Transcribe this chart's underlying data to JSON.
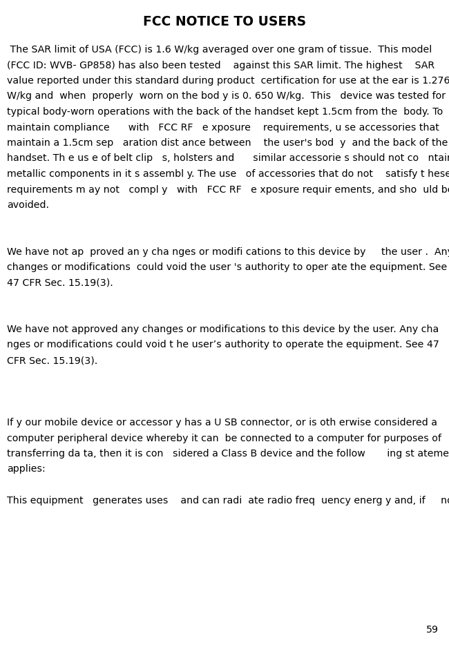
{
  "title": "FCC NOTICE TO USERS",
  "page_number": "59",
  "background_color": "#ffffff",
  "text_color": "#000000",
  "title_fontsize": 13.5,
  "body_fontsize": 10.2,
  "page_num_fontsize": 10.2,
  "lines": [
    " The SAR limit of USA (FCC) is 1.6 W/kg averaged over one gram of tissue.  This model",
    "(FCC ID: WVB- GP858) has also been tested    against this SAR limit. The highest    SAR",
    "value reported under this standard during product  certification for use at the ear is 1.276",
    "W/kg and  when  properly  worn o​n the bod y is 0. 650 W/kg.  This   device w​as teste​d for",
    "typical body-worn operations with the back of t​he handset kept 1.5cm from the  body. To",
    "maintain compliance      with   FCC RF   e xposure    requirements, u se accessories that",
    "maintain a 1.5cm sep   aration dist ance between    the user's bod  y  and the back of the",
    "handset. Th e us e of belt clip   s, holsters and      similar accessorie s should not co   ntain",
    "metallic components in it s assembl y. The use   of accessories that do not    satisfy t hese",
    "requirements m ay not   compl y   with   FCC RF   e xposure requir ements, and sho  uld be",
    "avoided.",
    "",
    "",
    "We have not ap  proved an y cha nges or modifi cations to this device by     the user .  Any",
    "changes or modifications  could void the user 's authority to oper ate the equipment. See",
    "47 CFR Sec. 15.19(3).",
    "",
    "",
    "We have not approved any changes or modifications to this device by the user. Any cha",
    "nges or modifications could void t he user’s authority to operate the equipment. See 47",
    "CFR Sec. 15.19(3).",
    "",
    "",
    "",
    "If y our mobile device or accessor y h​as a U SB co​nne​ctor, or is oth erwise considered a",
    "computer peripheral device w​hereby it can  be connected to a co​mputer for purposes of",
    "transferring da ta, then it is con   sidered a Class B device and the follow       ing st atement",
    "applies:",
    "",
    "This equipment   generates uses    and can radi  ate radio freq  uency energ y and, if     not"
  ]
}
